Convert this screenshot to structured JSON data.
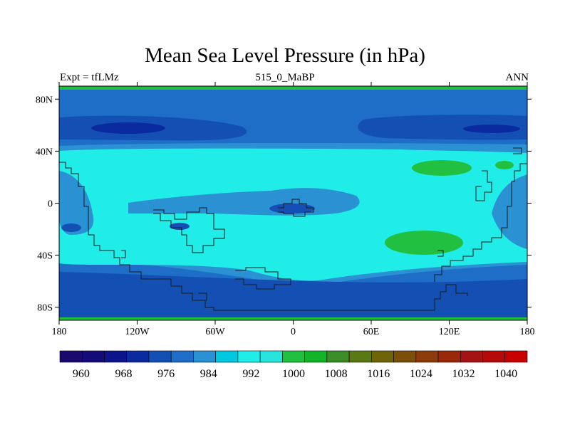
{
  "chart_data": {
    "type": "heatmap",
    "title": "Mean Sea Level Pressure (in hPa)",
    "left_string": "Expt = tfLMz",
    "center_string": "515_0_MaBP",
    "right_string": "ANN",
    "x_ticks": [
      {
        "value": -180,
        "label": "180"
      },
      {
        "value": -120,
        "label": "120W"
      },
      {
        "value": -60,
        "label": "60W"
      },
      {
        "value": 0,
        "label": "0"
      },
      {
        "value": 60,
        "label": "60E"
      },
      {
        "value": 120,
        "label": "120E"
      },
      {
        "value": 180,
        "label": "180"
      }
    ],
    "y_ticks": [
      {
        "value": 80,
        "label": "80N"
      },
      {
        "value": 40,
        "label": "40N"
      },
      {
        "value": 0,
        "label": "0"
      },
      {
        "value": -40,
        "label": "40S"
      },
      {
        "value": -80,
        "label": "80S"
      }
    ],
    "xlim": [
      -180,
      180
    ],
    "ylim": [
      -90,
      90
    ],
    "colorbar": {
      "colors": [
        "#1a0a6e",
        "#140a78",
        "#0c148c",
        "#0a2aa0",
        "#1450b4",
        "#1e6ec8",
        "#2a92d2",
        "#00c8e0",
        "#20ece8",
        "#28e4dc",
        "#22c040",
        "#14b428",
        "#3c8c28",
        "#5a7814",
        "#6e640a",
        "#7a5008",
        "#8c3c0a",
        "#9a280a",
        "#a41414",
        "#b40a0a",
        "#c80000"
      ],
      "labels": [
        {
          "value": 960,
          "label": "960"
        },
        {
          "value": 968,
          "label": "968"
        },
        {
          "value": 976,
          "label": "976"
        },
        {
          "value": 984,
          "label": "984"
        },
        {
          "value": 992,
          "label": "992"
        },
        {
          "value": 1000,
          "label": "1000"
        },
        {
          "value": 1008,
          "label": "1008"
        },
        {
          "value": 1016,
          "label": "1016"
        },
        {
          "value": 1024,
          "label": "1024"
        },
        {
          "value": 1032,
          "label": "1032"
        },
        {
          "value": 1040,
          "label": "1040"
        }
      ],
      "min": 956,
      "max": 1044
    }
  }
}
